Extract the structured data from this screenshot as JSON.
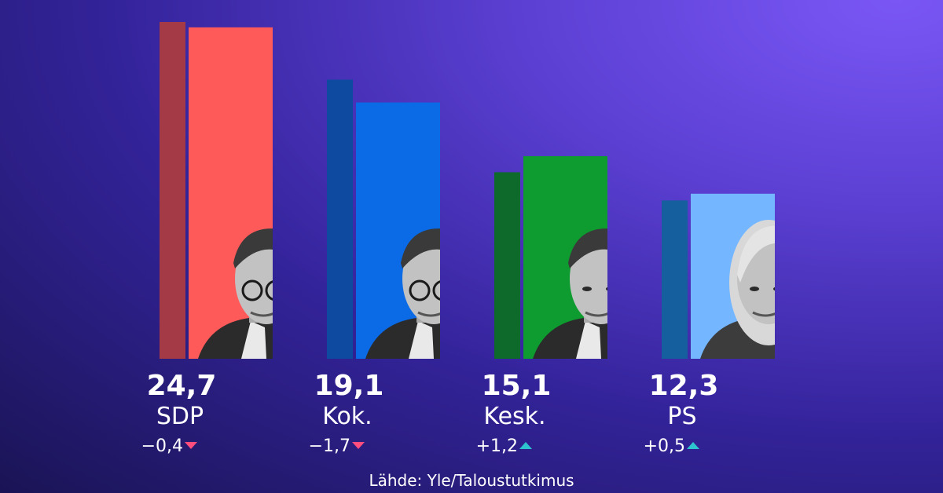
{
  "chart_data": {
    "type": "bar",
    "categories": [
      "SDP",
      "Kok.",
      "Kesk.",
      "PS"
    ],
    "values": [
      24.7,
      19.1,
      15.1,
      12.3
    ],
    "value_labels": [
      "24,7",
      "19,1",
      "15,1",
      "12,3"
    ],
    "previous_values": [
      25.1,
      20.8,
      13.9,
      11.8
    ],
    "changes": [
      "−0,4",
      "−1,7",
      "+1,2",
      "+0,5"
    ],
    "change_directions": [
      "down",
      "down",
      "up",
      "up"
    ],
    "colors": [
      "#ff5a5a",
      "#0b6ae6",
      "#0e9b2f",
      "#74b6ff"
    ],
    "previous_colors": [
      "#a33a45",
      "#0d4aa0",
      "#0d6a2b",
      "#155f9e"
    ],
    "arrow_colors": {
      "down": "#ff4d7d",
      "up": "#2ec4cf"
    },
    "portraits": [
      "portrait-sdp-leader",
      "portrait-kok-leader",
      "portrait-kesk-leader",
      "portrait-ps-leader"
    ],
    "ylim": [
      0,
      25.1
    ]
  },
  "source": "Lähde: Yle/Taloustutkimus"
}
